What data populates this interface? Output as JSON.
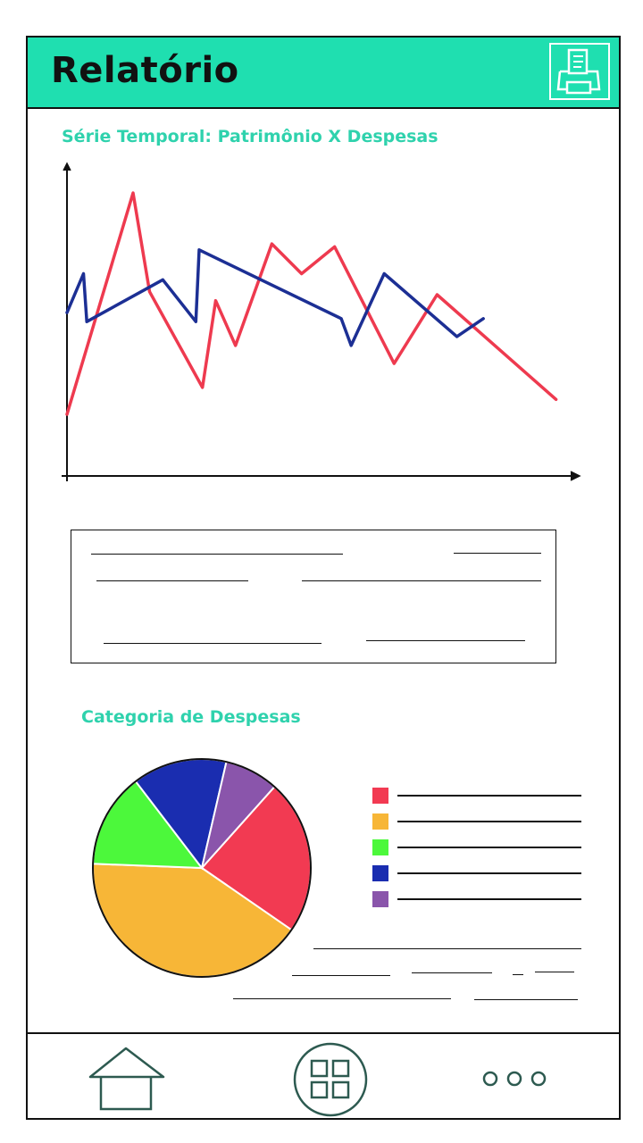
{
  "header": {
    "title": "Relatório",
    "print_icon": "printer-icon"
  },
  "line_chart": {
    "title": "Série Temporal: Patrimônio X Despesas"
  },
  "pie_chart": {
    "title": "Categoria de Despesas"
  },
  "chart_data": [
    {
      "type": "line",
      "title": "Série Temporal: Patrimônio X Despesas",
      "xlabel": "",
      "ylabel": "",
      "grid": false,
      "series": [
        {
          "color": "#ee3a4f",
          "values": [
            [
              0,
              20
            ],
            [
              20,
              94
            ],
            [
              25,
              61
            ],
            [
              41,
              29
            ],
            [
              45,
              58
            ],
            [
              51,
              43
            ],
            [
              62,
              77
            ],
            [
              71,
              67
            ],
            [
              81,
              76
            ],
            [
              99,
              37
            ],
            [
              112,
              60
            ],
            [
              148,
              25
            ]
          ]
        },
        {
          "color": "#1c2f94",
          "values": [
            [
              0,
              54
            ],
            [
              5,
              67
            ],
            [
              6,
              51
            ],
            [
              29,
              65
            ],
            [
              39,
              51
            ],
            [
              40,
              75
            ],
            [
              83,
              52
            ],
            [
              86,
              43
            ],
            [
              96,
              67
            ],
            [
              118,
              46
            ],
            [
              126,
              52
            ]
          ]
        }
      ]
    },
    {
      "type": "pie",
      "title": "Categoria de Despesas",
      "legend": "right",
      "slices": [
        {
          "color": "#f23a52",
          "value": 23
        },
        {
          "color": "#f7b637",
          "value": 41
        },
        {
          "color": "#4cf83b",
          "value": 14
        },
        {
          "color": "#1a2db0",
          "value": 14
        },
        {
          "color": "#8a55ab",
          "value": 8
        }
      ]
    }
  ],
  "bottom_nav": {
    "home_icon": "home-icon",
    "grid_icon": "apps-grid-icon",
    "more_icon": "more-dots-icon"
  }
}
